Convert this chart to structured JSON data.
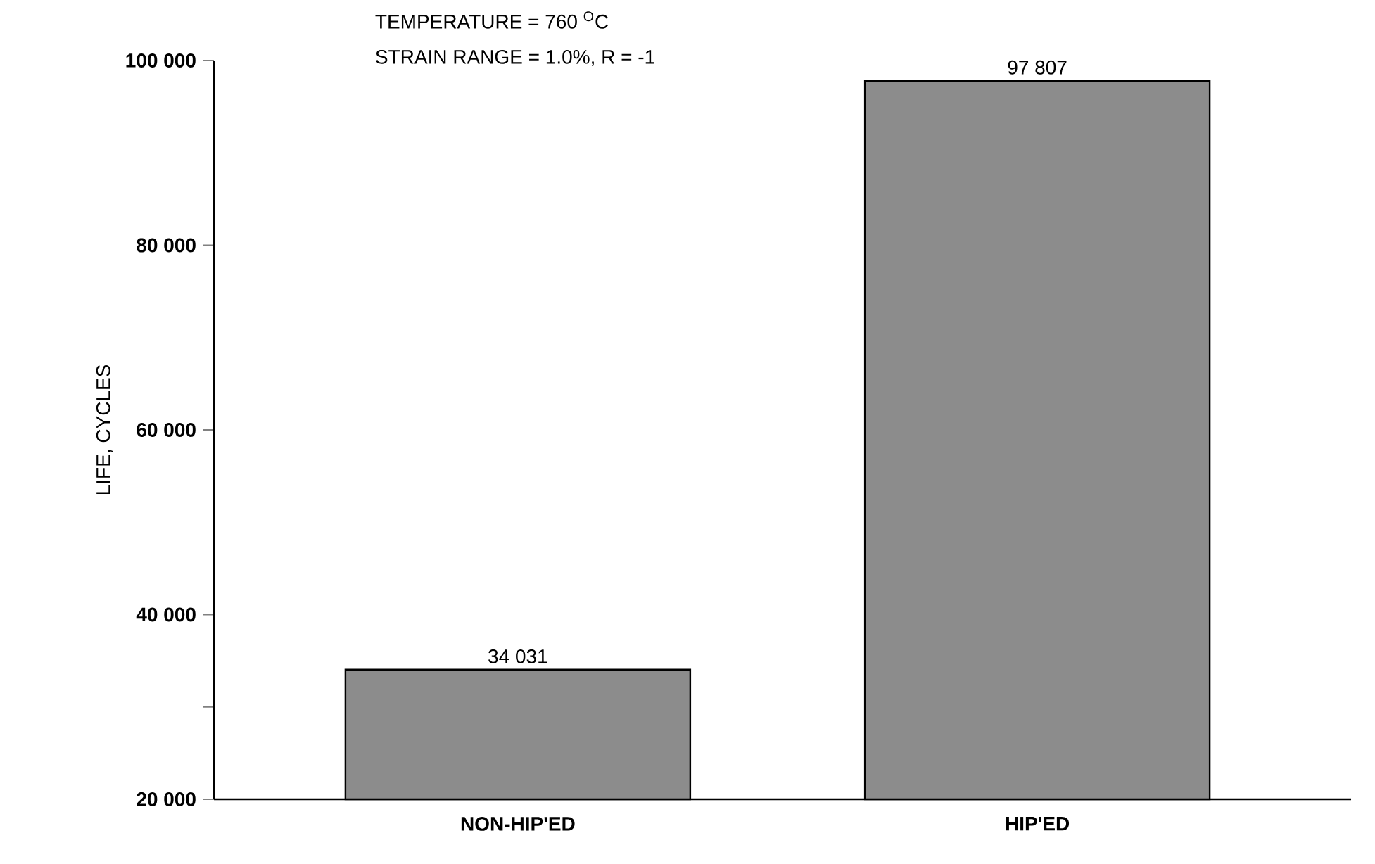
{
  "chart_data": {
    "type": "bar",
    "ylabel": "LIFE, CYCLES",
    "categories": [
      "NON-HIP'ED",
      "HIP'ED"
    ],
    "values": [
      34031,
      97807
    ],
    "color": "#8c8c8c",
    "value_labels": [
      "34 031",
      "97 807"
    ],
    "ylim": [
      20000,
      100000
    ],
    "yticks": [
      {
        "value": 20000,
        "label": "20 000"
      },
      {
        "value": 30000,
        "label": null
      },
      {
        "value": 40000,
        "label": "40 000"
      },
      {
        "value": 60000,
        "label": "60 000"
      },
      {
        "value": 80000,
        "label": "80 000"
      },
      {
        "value": 100000,
        "label": "100 000"
      }
    ],
    "annotations": [
      "TEMPERATURE = 760 $^{O}$C",
      "STRAIN RANGE = 1.0%, R = -1"
    ],
    "grid": false
  }
}
